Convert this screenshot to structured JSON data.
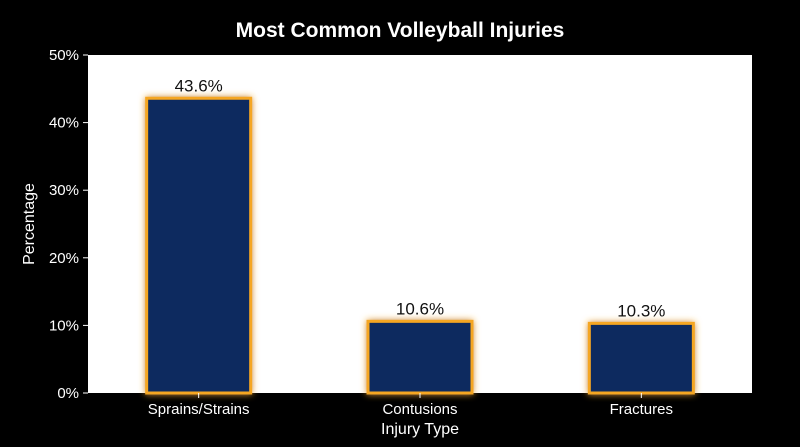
{
  "chart_data": {
    "type": "bar",
    "title": "Most Common Volleyball Injuries",
    "xlabel": "Injury Type",
    "ylabel": "Percentage",
    "categories": [
      "Sprains/Strains",
      "Contusions",
      "Fractures"
    ],
    "values": [
      43.6,
      10.6,
      10.3
    ],
    "data_labels": [
      "43.6%",
      "10.6%",
      "10.3%"
    ],
    "ylim": [
      0,
      50
    ],
    "yticks": [
      0,
      10,
      20,
      30,
      40,
      50
    ],
    "ytick_labels": [
      "0%",
      "10%",
      "20%",
      "30%",
      "40%",
      "50%"
    ],
    "grid": false,
    "legend": "none",
    "colors": {
      "background": "#000000",
      "plot_area": "#ffffff",
      "bar_fill": "#0b2a5e",
      "bar_glow": "#f5a623",
      "text": "#ffffff",
      "data_label": "#111111"
    }
  }
}
